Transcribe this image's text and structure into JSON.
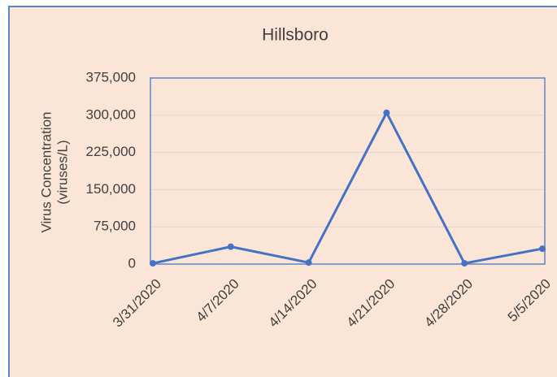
{
  "chart_data": {
    "type": "line",
    "title": "Hillsboro",
    "ylabel": [
      "Virus Concentration",
      "(viruses/L)"
    ],
    "categories": [
      "3/31/2020",
      "4/7/2020",
      "4/14/2020",
      "4/21/2020",
      "4/28/2020",
      "5/5/2020"
    ],
    "series": [
      {
        "color": "#4472c4",
        "values": [
          1500,
          35000,
          3000,
          305000,
          1500,
          31000
        ]
      }
    ],
    "ylim": [
      0,
      375000
    ],
    "yticks": [
      0,
      {
        "value": 75000,
        "label": "75,000"
      },
      {
        "value": 150000,
        "label": "150,000"
      },
      {
        "value": 225000,
        "label": "225,000"
      },
      {
        "value": 300000,
        "label": "300,000"
      },
      {
        "value": 375000,
        "label": "375,000"
      }
    ],
    "grid": true
  }
}
